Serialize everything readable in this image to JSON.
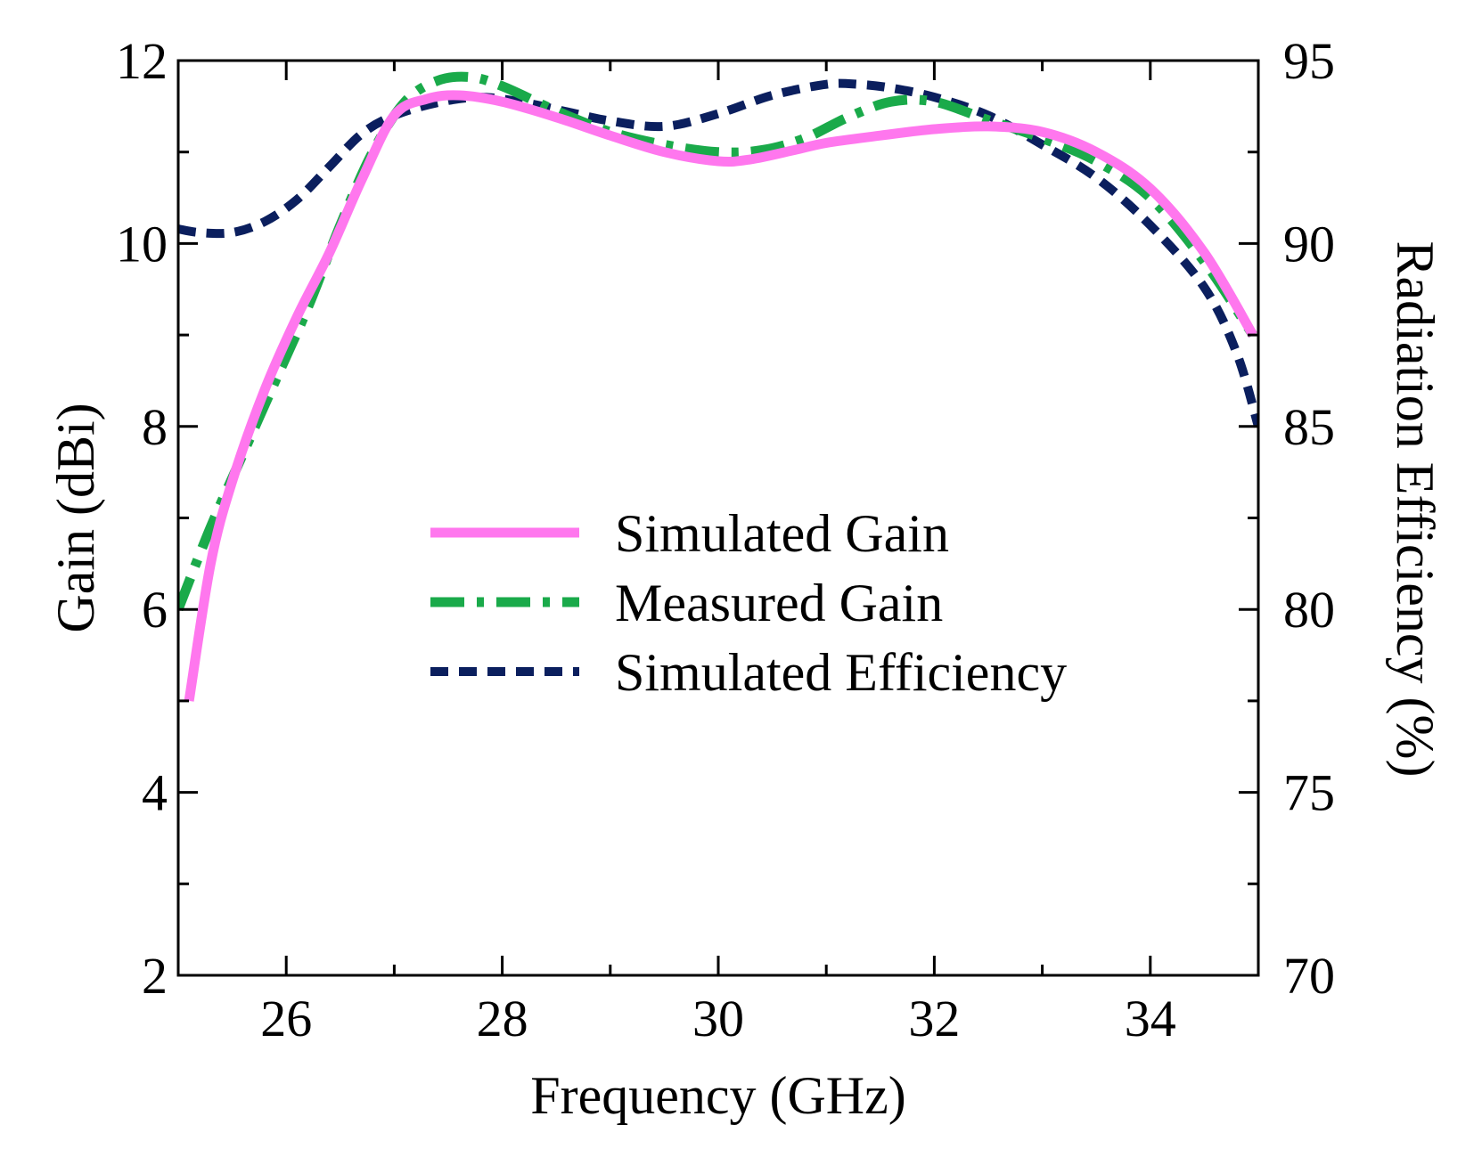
{
  "chart_data": {
    "type": "line",
    "title": "",
    "xlabel": "Frequency (GHz)",
    "ylabel_left": "Gain (dBi)",
    "ylabel_right": "Radiation Efficiency (%)",
    "xlim": [
      25,
      35
    ],
    "ylim_left": [
      2,
      12
    ],
    "ylim_right": [
      70,
      95
    ],
    "x_ticks": [
      26,
      28,
      30,
      32,
      34
    ],
    "x_minor_ticks": [
      25,
      27,
      29,
      31,
      33,
      35
    ],
    "y_left_ticks": [
      2,
      4,
      6,
      8,
      10,
      12
    ],
    "y_left_minor_ticks": [
      3,
      5,
      7,
      9,
      11
    ],
    "y_right_ticks": [
      70,
      75,
      80,
      85,
      90,
      95
    ],
    "y_right_minor_ticks": [
      72.5,
      77.5,
      82.5,
      87.5,
      92.5
    ],
    "grid": false,
    "legend_position": "center",
    "series": [
      {
        "name": "Simulated Gain",
        "axis": "left",
        "color": "#ff77ee",
        "style": "solid",
        "x": [
          25.1,
          25.3,
          25.5,
          25.8,
          26.1,
          26.4,
          26.7,
          27.0,
          27.3,
          27.6,
          28.0,
          28.5,
          29.0,
          29.5,
          30.0,
          30.3,
          30.7,
          31.0,
          31.5,
          32.0,
          32.5,
          33.0,
          33.5,
          34.0,
          34.5,
          34.95
        ],
        "y": [
          5.0,
          6.5,
          7.4,
          8.4,
          9.2,
          9.9,
          10.7,
          11.4,
          11.58,
          11.62,
          11.55,
          11.38,
          11.18,
          11.0,
          10.9,
          10.92,
          11.02,
          11.1,
          11.18,
          11.25,
          11.28,
          11.22,
          11.0,
          10.6,
          9.9,
          9.0
        ]
      },
      {
        "name": "Measured Gain",
        "axis": "left",
        "color": "#1aaa4a",
        "style": "dashdot",
        "x": [
          25.0,
          25.3,
          25.6,
          25.9,
          26.2,
          26.5,
          26.8,
          27.1,
          27.4,
          27.7,
          28.0,
          28.5,
          29.0,
          29.5,
          30.0,
          30.4,
          30.8,
          31.2,
          31.6,
          32.0,
          32.5,
          33.0,
          33.5,
          34.0,
          34.5,
          34.95
        ],
        "y": [
          6.0,
          6.9,
          7.7,
          8.5,
          9.3,
          10.2,
          11.0,
          11.55,
          11.78,
          11.82,
          11.72,
          11.45,
          11.22,
          11.08,
          11.0,
          11.02,
          11.15,
          11.38,
          11.55,
          11.55,
          11.35,
          11.15,
          10.9,
          10.5,
          9.8,
          9.0
        ]
      },
      {
        "name": "Simulated Efficiency",
        "axis": "right",
        "color": "#0b1f5e",
        "style": "dashed",
        "x": [
          25.0,
          25.2,
          25.5,
          25.8,
          26.1,
          26.4,
          26.7,
          27.0,
          27.4,
          27.8,
          28.2,
          28.6,
          29.0,
          29.5,
          30.0,
          30.5,
          31.0,
          31.3,
          31.6,
          32.0,
          32.5,
          33.0,
          33.5,
          34.0,
          34.5,
          34.8,
          35.0
        ],
        "y": [
          90.4,
          90.3,
          90.3,
          90.6,
          91.2,
          92.1,
          93.0,
          93.5,
          93.85,
          94.0,
          93.85,
          93.6,
          93.35,
          93.2,
          93.55,
          94.05,
          94.35,
          94.35,
          94.25,
          94.0,
          93.5,
          92.7,
          91.8,
          90.5,
          88.8,
          87.0,
          85.0
        ]
      }
    ]
  }
}
